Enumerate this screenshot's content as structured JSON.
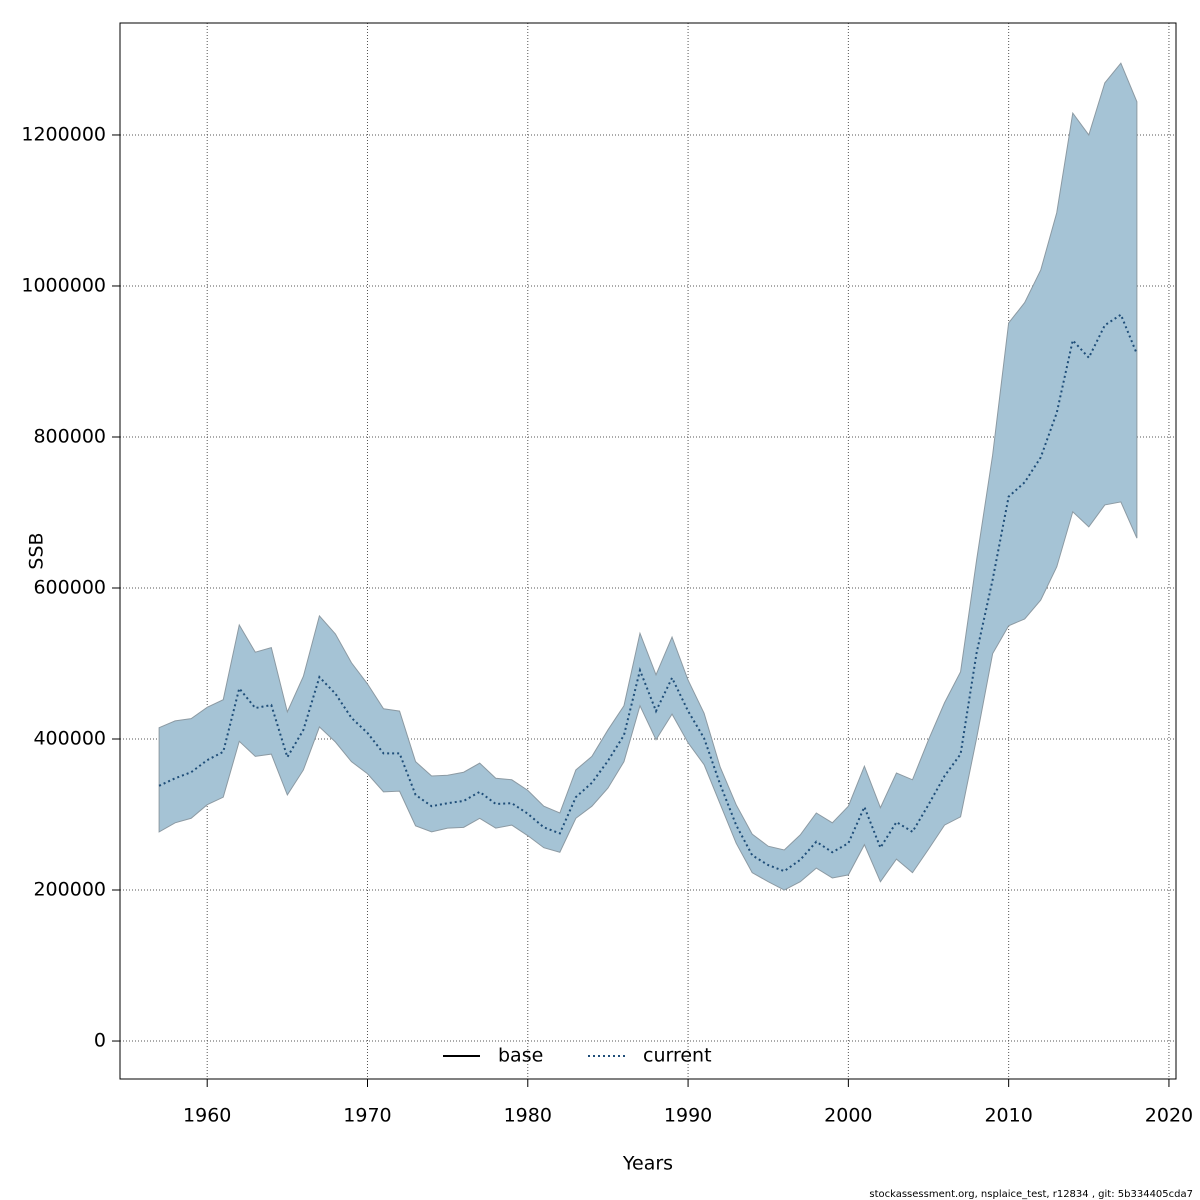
{
  "chart_data": {
    "type": "line",
    "x_label": "Years",
    "y_label": "SSB",
    "footnote": "stockassessment.org, nsplaice_test, r12834 , git: 5b334405cda7",
    "x": [
      1957,
      1958,
      1959,
      1960,
      1961,
      1962,
      1963,
      1964,
      1965,
      1966,
      1967,
      1968,
      1969,
      1970,
      1971,
      1972,
      1973,
      1974,
      1975,
      1976,
      1977,
      1978,
      1979,
      1980,
      1981,
      1982,
      1983,
      1984,
      1985,
      1986,
      1987,
      1988,
      1989,
      1990,
      1991,
      1992,
      1993,
      1994,
      1995,
      1996,
      1997,
      1998,
      1999,
      2000,
      2001,
      2002,
      2003,
      2004,
      2005,
      2006,
      2007,
      2008,
      2009,
      2010,
      2011,
      2012,
      2013,
      2014,
      2015,
      2016,
      2017,
      2018
    ],
    "series": [
      {
        "name": "current",
        "color": "#1f4e79",
        "dash": "dotted",
        "values": [
          338000,
          348000,
          356000,
          372000,
          383000,
          467000,
          441000,
          445000,
          376000,
          412000,
          482000,
          460000,
          428000,
          408000,
          381000,
          381000,
          326000,
          311000,
          315000,
          318000,
          330000,
          314000,
          315000,
          301000,
          283000,
          275000,
          323000,
          342000,
          371000,
          405000,
          491000,
          437000,
          481000,
          437000,
          401000,
          340000,
          286000,
          246000,
          233000,
          225000,
          240000,
          264000,
          250000,
          262000,
          310000,
          256000,
          290000,
          277000,
          313000,
          351000,
          380000,
          514000,
          611000,
          721000,
          740000,
          773000,
          832000,
          928000,
          905000,
          948000,
          962000,
          910000
        ]
      }
    ],
    "band": {
      "color": "#a5c3d5",
      "edge": "#8c9aa3",
      "upper": [
        415000,
        424000,
        427000,
        442000,
        452000,
        551000,
        515000,
        521000,
        436000,
        483000,
        563000,
        539000,
        501000,
        473000,
        440000,
        437000,
        370000,
        351000,
        352000,
        356000,
        368000,
        348000,
        346000,
        332000,
        311000,
        302000,
        359000,
        377000,
        412000,
        444000,
        540000,
        485000,
        535000,
        478000,
        434000,
        363000,
        313000,
        274000,
        258000,
        253000,
        273000,
        302000,
        289000,
        311000,
        364000,
        309000,
        355000,
        346000,
        399000,
        448000,
        489000,
        637000,
        776000,
        951000,
        978000,
        1021000,
        1097000,
        1229000,
        1200000,
        1269000,
        1295000,
        1244000
      ],
      "lower": [
        277000,
        289000,
        295000,
        313000,
        323000,
        397000,
        377000,
        380000,
        326000,
        359000,
        416000,
        396000,
        370000,
        354000,
        330000,
        331000,
        285000,
        277000,
        282000,
        283000,
        295000,
        282000,
        286000,
        272000,
        256000,
        250000,
        295000,
        311000,
        335000,
        370000,
        444000,
        399000,
        433000,
        395000,
        366000,
        314000,
        262000,
        223000,
        211000,
        200000,
        211000,
        229000,
        216000,
        220000,
        260000,
        211000,
        241000,
        223000,
        254000,
        286000,
        297000,
        401000,
        513000,
        550000,
        559000,
        584000,
        628000,
        701000,
        681000,
        710000,
        714000,
        666000
      ]
    },
    "legend": [
      {
        "name": "base",
        "color": "#000000",
        "dash": "solid"
      },
      {
        "name": "current",
        "color": "#1f4e79",
        "dash": "dotted"
      }
    ],
    "legend_position": "bottom",
    "xlim": [
      1954.56,
      2020.44
    ],
    "xticks": [
      1960,
      1970,
      1980,
      1990,
      2000,
      2010,
      2020
    ],
    "ylim": [
      -50300,
      1348300
    ],
    "yticks": [
      0,
      200000,
      400000,
      600000,
      800000,
      1000000,
      1200000
    ],
    "grid": true
  }
}
